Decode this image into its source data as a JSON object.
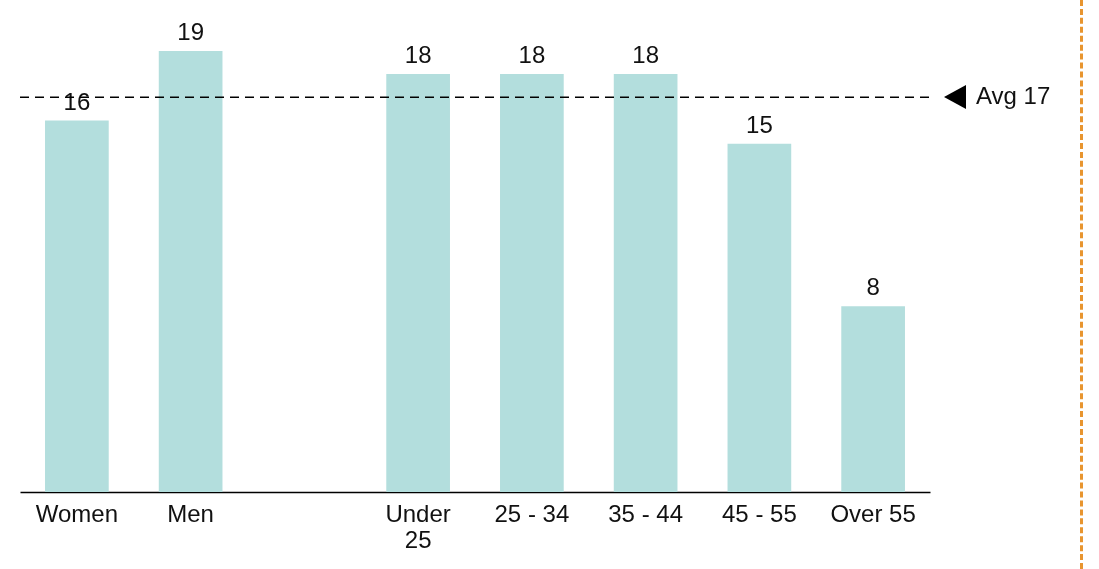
{
  "chart_data": {
    "type": "bar",
    "categories": [
      "Women",
      "Men",
      null,
      "Under 25",
      "25 - 34",
      "35 - 44",
      "45 - 55",
      "Over 55"
    ],
    "values": [
      16,
      19,
      null,
      18,
      18,
      18,
      15,
      8
    ],
    "data_labels": true,
    "color": "#b3dedd",
    "ref_lines": [
      {
        "axis": "y",
        "value": 17,
        "label": "Avg 17",
        "line_style": "dashed",
        "color": "#000000"
      }
    ],
    "grid": false
  }
}
